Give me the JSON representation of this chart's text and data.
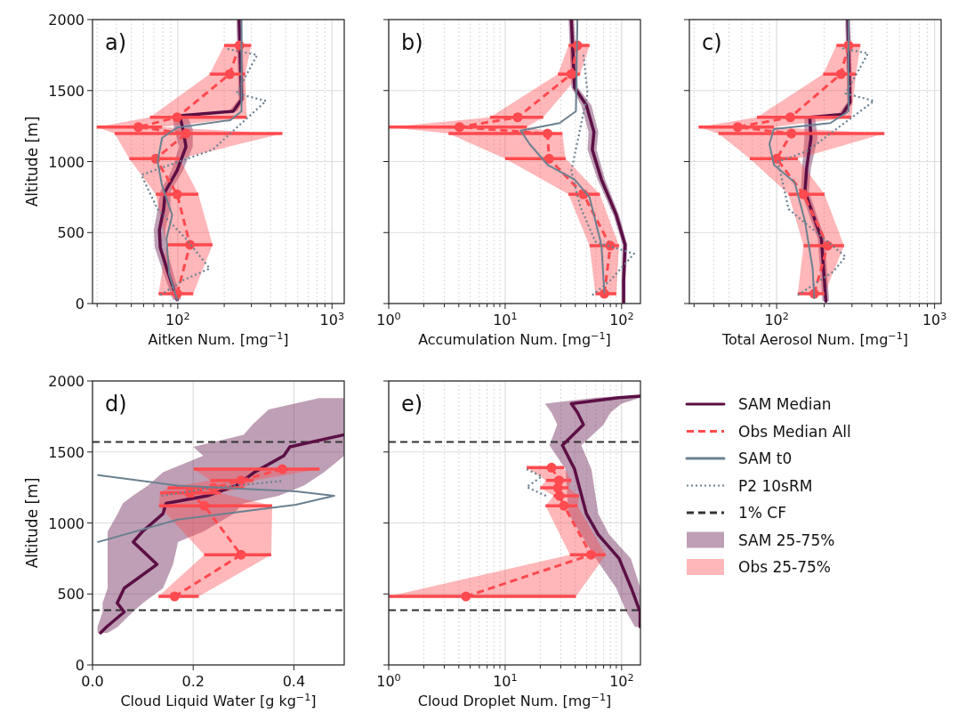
{
  "chart_data": [
    {
      "type": "line",
      "orientation": "horizontal",
      "log": "x",
      "grid": true,
      "annotations": [
        "a)"
      ],
      "xlabel": "Aitken Num. [mg$^{−1}$]",
      "ylabel": "Altitude [m]",
      "xlim": [
        28,
        1200
      ],
      "xticks": [
        {
          "value": 100,
          "label": "10$^{2}$"
        },
        {
          "value": 1000,
          "label": "10$^{3}$"
        }
      ],
      "ylim": [
        0,
        2000
      ],
      "yticks": [
        0,
        500,
        1000,
        1500,
        2000
      ],
      "series": [
        {
          "line_style": "solid",
          "color": "#5c0f45",
          "x": [
            2000,
            1438,
            1354,
            1323,
            1229,
            1104,
            936,
            790,
            665,
            518,
            393,
            226,
            27
          ],
          "values": [
            250,
            259,
            229,
            103,
            108,
            113,
            99,
            83,
            81,
            76,
            77,
            86,
            99
          ],
          "lower": [
            240,
            248,
            215,
            92,
            95,
            102,
            91,
            77,
            74,
            70,
            71,
            80,
            93
          ],
          "upper": [
            260,
            270,
            243,
            115,
            125,
            125,
            108,
            90,
            89,
            83,
            84,
            93,
            105
          ]
        },
        {
          "line_style": "dashed",
          "marker": "circle",
          "color": "#ff4a4f",
          "x": [
            1818,
            1616,
            1312,
            1243,
            1197,
            1020,
            769,
            414,
            69
          ],
          "values": [
            251,
            217,
            99,
            55.5,
            113,
            72,
            99,
            120,
            99
          ],
          "lower": [
            200,
            161,
            66,
            29.8,
            39,
            48.5,
            72,
            84.5,
            75
          ],
          "upper": [
            299,
            274,
            280,
            79,
            477,
            103,
            136,
            168,
            126
          ],
          "errors": [
            [
              200,
              299
            ],
            [
              161,
              274
            ],
            [
              66,
              280
            ],
            [
              29.8,
              79
            ],
            [
              39,
              477
            ],
            [
              48.5,
              103
            ],
            [
              72,
              136
            ],
            [
              84.5,
              168
            ],
            [
              75,
              126
            ]
          ]
        },
        {
          "line_style": "solid",
          "color": "#6b8090",
          "x": [
            2000,
            1354,
            1292,
            1239,
            1166,
            999,
            832,
            623,
            456,
            205,
            27
          ],
          "values": [
            259,
            259,
            219,
            99,
            79,
            74,
            79,
            92,
            84.5,
            88,
            99
          ]
        },
        {
          "line_style": "dotted",
          "color": "#6b8090",
          "x": [
            1793,
            1751,
            1480,
            1427,
            1083,
            905,
            665,
            456,
            247,
            163,
            59
          ],
          "values": [
            210,
            327,
            240,
            373,
            168,
            58,
            74,
            113,
            161,
            108,
            77
          ]
        }
      ]
    },
    {
      "type": "line",
      "orientation": "horizontal",
      "log": "x",
      "grid": true,
      "tick_labels": "x",
      "annotations": [
        "b)"
      ],
      "xlabel": "Accumulation Num. [mg$^{−1}$]",
      "xlim": [
        1,
        145
      ],
      "xticks": [
        {
          "value": 1,
          "label": "10$^{0}$"
        },
        {
          "value": 10,
          "label": "10$^{1}$"
        },
        {
          "value": 100,
          "label": "10$^{2}$"
        }
      ],
      "ylim": [
        0,
        2000
      ],
      "yticks": [
        0,
        500,
        1000,
        1500,
        2000
      ],
      "series": [
        {
          "line_style": "solid",
          "color": "#5c0f45",
          "x": [
            2000,
            1522,
            1396,
            1208,
            1083,
            874,
            623,
            414,
            163,
            6
          ],
          "values": [
            37,
            39.4,
            49.8,
            57.8,
            56,
            67,
            90,
            107,
            104,
            104
          ],
          "lower": [
            35,
            37,
            45,
            52,
            51,
            62,
            85,
            102,
            100,
            100
          ],
          "upper": [
            39,
            42,
            55,
            63,
            61,
            72,
            95,
            112,
            108,
            108
          ]
        },
        {
          "line_style": "dashed",
          "marker": "circle",
          "color": "#ff4a4f",
          "x": [
            1818,
            1616,
            1312,
            1243,
            1197,
            1020,
            769,
            407,
            69
          ],
          "values": [
            41.7,
            37,
            12.8,
            4.05,
            23.1,
            23.8,
            47,
            80,
            71
          ],
          "lower": [
            35,
            28.4,
            7.4,
            1,
            3.26,
            10,
            35,
            53,
            59.5
          ],
          "upper": [
            53,
            44,
            21.2,
            15.3,
            31,
            33,
            65,
            95,
            90
          ],
          "errors": [
            [
              35,
              53
            ],
            [
              28.4,
              44
            ],
            [
              7.4,
              21.2
            ],
            [
              1,
              15.3
            ],
            [
              3.26,
              31
            ],
            [
              10,
              33
            ],
            [
              35,
              65
            ],
            [
              53,
              95
            ],
            [
              59.5,
              90
            ]
          ]
        },
        {
          "line_style": "solid",
          "color": "#6b8090",
          "x": [
            2000,
            1354,
            1271,
            1218,
            1124,
            978,
            874,
            748,
            414,
            79
          ],
          "values": [
            41.7,
            40.5,
            29.3,
            13.6,
            16.2,
            23.1,
            39.4,
            53,
            67,
            71
          ]
        },
        {
          "line_style": "dotted",
          "color": "#6b8090",
          "x": [
            1751,
            1480,
            936,
            686,
            435,
            351,
            163,
            59
          ],
          "values": [
            47,
            51,
            37,
            44,
            59.5,
            128,
            80,
            56
          ]
        }
      ]
    },
    {
      "type": "line",
      "orientation": "horizontal",
      "log": "x",
      "grid": true,
      "tick_labels": "x",
      "annotations": [
        "c)"
      ],
      "xlabel": "Total Aerosol Num. [mg$^{−1}$]",
      "xlim": [
        28,
        1100
      ],
      "xticks": [
        {
          "value": 100,
          "label": "10$^{2}$"
        },
        {
          "value": 1000,
          "label": "10$^{3}$"
        }
      ],
      "ylim": [
        0,
        2000
      ],
      "yticks": [
        0,
        500,
        1000,
        1500,
        2000
      ],
      "series": [
        {
          "line_style": "solid",
          "color": "#5c0f45",
          "x": [
            2000,
            1417,
            1333,
            1312,
            1166,
            957,
            790,
            456,
            17
          ],
          "values": [
            282,
            291,
            261,
            162,
            165,
            155,
            151,
            192,
            205
          ],
          "lower": [
            272,
            280,
            245,
            150,
            150,
            145,
            142,
            182,
            195
          ],
          "upper": [
            292,
            302,
            275,
            175,
            182,
            165,
            160,
            202,
            215
          ]
        },
        {
          "line_style": "dashed",
          "marker": "circle",
          "color": "#ff4a4f",
          "x": [
            1818,
            1616,
            1312,
            1243,
            1197,
            1020,
            769,
            407,
            69
          ],
          "values": [
            285,
            255,
            122,
            56.7,
            124,
            100,
            148,
            210,
            173
          ],
          "lower": [
            239,
            197,
            75,
            32,
            42.8,
            67.6,
            119,
            148,
            136
          ],
          "upper": [
            339,
            318,
            297,
            96,
            481,
            136,
            201,
            267,
            201
          ],
          "errors": [
            [
              239,
              339
            ],
            [
              197,
              318
            ],
            [
              75,
              297
            ],
            [
              32,
              96
            ],
            [
              42.8,
              481
            ],
            [
              67.6,
              136
            ],
            [
              119,
              201
            ],
            [
              148,
              267
            ],
            [
              136,
              201
            ]
          ]
        },
        {
          "line_style": "solid",
          "color": "#6b8090",
          "x": [
            2000,
            1354,
            1271,
            1229,
            1124,
            978,
            853,
            581,
            247,
            38
          ],
          "values": [
            285,
            285,
            219,
            96,
            90,
            96,
            130,
            151,
            169,
            173
          ]
        },
        {
          "line_style": "dotted",
          "color": "#6b8090",
          "x": [
            1797,
            1762,
            1480,
            1427,
            1072,
            999,
            665,
            330,
            226,
            59
          ],
          "values": [
            261,
            379,
            273,
            413,
            155,
            102,
            119,
            273,
            229,
            136
          ]
        }
      ]
    },
    {
      "type": "line",
      "orientation": "horizontal",
      "grid": true,
      "legend": "right",
      "annotations": [
        "d)",
        "SAM 25-75%",
        "Obs 25-75%"
      ],
      "xlabel": "Cloud Liquid Water [g kg$^{−1}$]",
      "ylabel": "Altitude [m]",
      "xlim": [
        0,
        0.5
      ],
      "xticks": [
        {
          "value": 0,
          "label": "0.0"
        },
        {
          "value": 0.2,
          "label": "0.2"
        },
        {
          "value": 0.4,
          "label": "0.4"
        }
      ],
      "ylim": [
        0,
        2000
      ],
      "yticks": [
        0,
        500,
        1000,
        1500,
        2000
      ],
      "ref_lines": [
        {
          "axis": "y",
          "value": 1570,
          "label": "1% CF",
          "color": "#333333",
          "line_style": "dashed"
        },
        {
          "axis": "y",
          "value": 385,
          "color": "#333333",
          "line_style": "dashed"
        }
      ],
      "series": [
        {
          "name": "SAM Median",
          "line_style": "solid",
          "color": "#5c0f45",
          "x": [
            1880,
            1800,
            1700,
            1620,
            1536,
            1473,
            1358,
            1264,
            1191,
            1138,
            1065,
            939,
            866,
            708,
            541,
            436,
            373,
            268,
            226
          ],
          "values": [
            null,
            null,
            null,
            0.498,
            0.392,
            0.38,
            0.322,
            0.286,
            0.228,
            0.146,
            0.14,
            0.099,
            0.081,
            0.128,
            0.063,
            0.049,
            0.063,
            0.028,
            0.016
          ],
          "lower": [
            0.45,
            0.35,
            0.32,
            0.3,
            0.2,
            0.22,
            0.14,
            0.11,
            0.08,
            0.06,
            0.05,
            0.03,
            0.03,
            0.03,
            0.03,
            0.02,
            0.02,
            0.01,
            0.01
          ],
          "upper": [
            0.5,
            0.5,
            0.5,
            0.5,
            0.5,
            0.5,
            0.46,
            0.42,
            0.37,
            0.3,
            0.28,
            0.22,
            0.17,
            0.16,
            0.14,
            0.1,
            0.08,
            0.05,
            0.03
          ]
        },
        {
          "name": "Obs Median All",
          "line_style": "dashed",
          "marker": "circle",
          "color": "#ff4a4f",
          "x": [
            1379,
            1300,
            1247,
            1211,
            1121,
            776,
            482
          ],
          "values": [
            0.377,
            0.295,
            0.24,
            0.193,
            0.222,
            0.295,
            0.163
          ],
          "lower": [
            0.201,
            0.234,
            0.149,
            0.134,
            0.132,
            0.222,
            0.131
          ],
          "upper": [
            0.451,
            0.32,
            0.301,
            0.254,
            0.357,
            0.355,
            0.211
          ],
          "errors": [
            [
              0.201,
              0.451
            ],
            [
              0.234,
              0.32
            ],
            [
              0.149,
              0.301
            ],
            [
              0.134,
              0.254
            ],
            [
              0.132,
              0.357
            ],
            [
              0.222,
              0.355
            ],
            [
              0.131,
              0.211
            ]
          ]
        },
        {
          "name": "SAM t0",
          "line_style": "solid",
          "color": "#6b8090",
          "x": [
            1337,
            1264,
            1222,
            1191,
            1128,
            1023,
            866
          ],
          "values": [
            0.011,
            0.169,
            0.404,
            0.48,
            0.404,
            0.169,
            0.011
          ]
        },
        {
          "name": "P2 10sRM",
          "line_style": "dotted",
          "color": "#6b8090",
          "x": [
            1295,
            1243,
            1191
          ],
          "values": [
            0.375,
            0.228,
            0.137
          ]
        }
      ]
    },
    {
      "type": "line",
      "orientation": "horizontal",
      "log": "x",
      "grid": true,
      "tick_labels": "x",
      "annotations": [
        "e)"
      ],
      "xlabel": "Cloud Droplet Num. [mg$^{−1}$]",
      "xlim": [
        1,
        145
      ],
      "xticks": [
        {
          "value": 1,
          "label": "10$^{0}$"
        },
        {
          "value": 10,
          "label": "10$^{1}$"
        },
        {
          "value": 100,
          "label": "10$^{2}$"
        }
      ],
      "ylim": [
        0,
        2000
      ],
      "yticks": [
        0,
        500,
        1000,
        1500,
        2000
      ],
      "ref_lines": [
        {
          "axis": "y",
          "value": 1570,
          "color": "#333333",
          "line_style": "dashed"
        },
        {
          "axis": "y",
          "value": 385,
          "color": "#333333",
          "line_style": "dashed"
        }
      ],
      "series": [
        {
          "line_style": "solid",
          "color": "#5c0f45",
          "x": [
            1893,
            1882,
            1840,
            1777,
            1693,
            1547,
            1379,
            1065,
            918,
            750,
            541,
            373,
            268
          ],
          "values": [
            144,
            95,
            37,
            41.8,
            47,
            31,
            39.4,
            49.8,
            63,
            95,
            121,
            144,
            144
          ],
          "lower": [
            95,
            60,
            22,
            25,
            28,
            24,
            33,
            35,
            45,
            60,
            90,
            110,
            130
          ],
          "upper": [
            145,
            145,
            100,
            80,
            70,
            45,
            55,
            63,
            78,
            120,
            145,
            145,
            145
          ]
        },
        {
          "line_style": "dashed",
          "marker": "circle",
          "color": "#ff4a4f",
          "x": [
            1390,
            1300,
            1247,
            1191,
            1121,
            776,
            482
          ],
          "values": [
            25,
            29,
            28.4,
            29.3,
            32,
            54.5,
            4.6
          ],
          "lower": [
            15.3,
            22.4,
            20,
            26,
            22.2,
            36,
            1
          ],
          "upper": [
            32,
            37,
            35,
            43,
            41.8,
            73,
            40.5
          ],
          "errors": [
            [
              15.3,
              32
            ],
            [
              22.4,
              37
            ],
            [
              20,
              35
            ],
            [
              26,
              43
            ],
            [
              22.2,
              41.8
            ],
            [
              36,
              73
            ],
            [
              1,
              40.5
            ]
          ]
        },
        {
          "line_style": "dotted",
          "color": "#6b8090",
          "x": [
            1379,
            1327,
            1253,
            1191
          ],
          "values": [
            15.3,
            20.6,
            15.3,
            22.4
          ]
        }
      ]
    }
  ]
}
